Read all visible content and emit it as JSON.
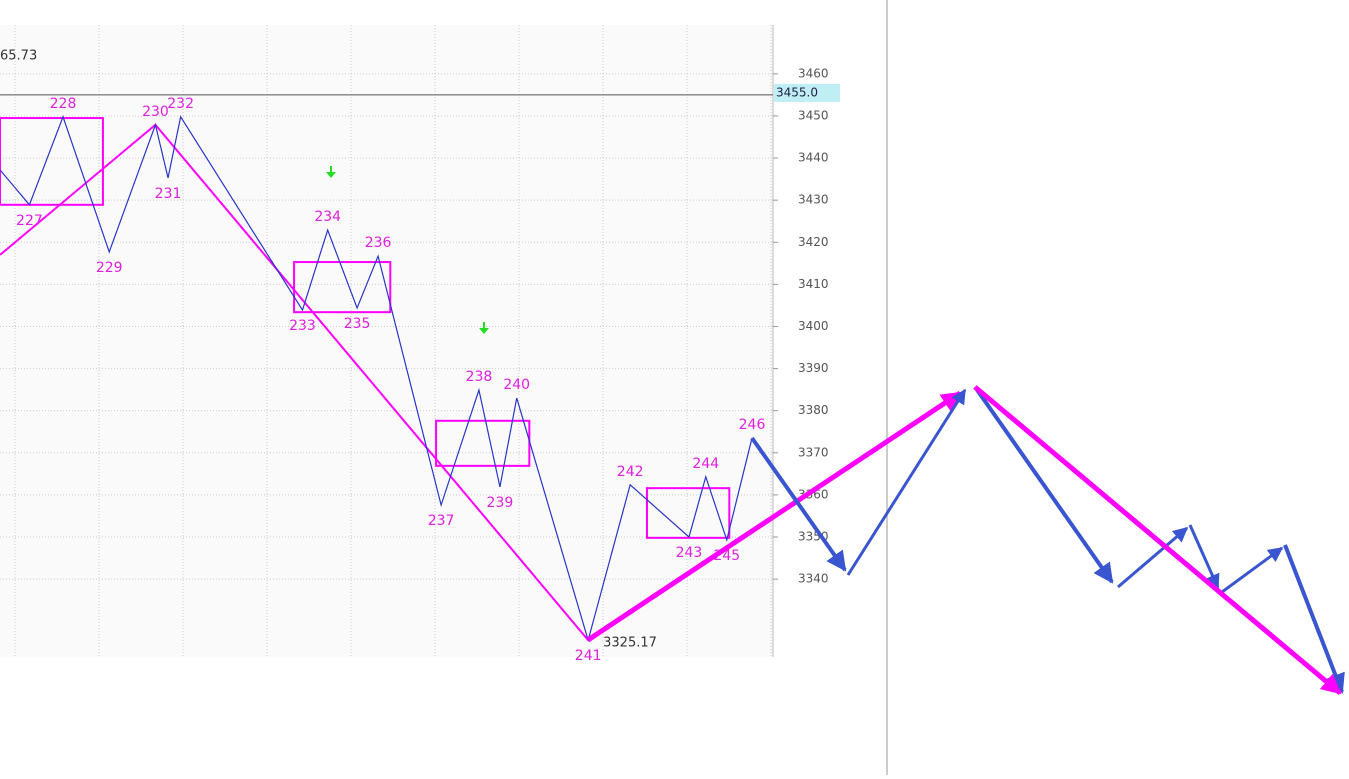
{
  "chart_data": {
    "type": "zigzag",
    "xlim": [
      0,
      184
    ],
    "ylim": [
      3321.5,
      3471.6
    ],
    "yticks": [
      3340,
      3350,
      3360,
      3370,
      3380,
      3390,
      3400,
      3410,
      3420,
      3430,
      3440,
      3450,
      3460
    ],
    "grid": true,
    "top_label": "65.73",
    "low_label": "3325.17",
    "reference": {
      "value": 3455,
      "label": "3455.0"
    },
    "waves": {
      "color": "#2a35c8",
      "x": [
        0,
        7,
        15,
        26,
        37,
        40,
        43,
        72,
        78,
        85,
        90,
        105,
        114,
        119,
        123,
        140,
        150,
        164,
        168,
        173,
        179
      ],
      "values": [
        3437.2,
        3428.9,
        3449.8,
        3417.7,
        3447.9,
        3435.3,
        3449.8,
        3403.9,
        3422.9,
        3404.4,
        3416.7,
        3357.6,
        3384.9,
        3361.9,
        3383.0,
        3325.5,
        3362.4,
        3350.0,
        3364.3,
        3349.3,
        3373.5
      ],
      "labels": [
        null,
        "227",
        "228",
        "229",
        "230",
        "231",
        "232",
        "233",
        "234",
        "235",
        "236",
        "237",
        "238",
        "239",
        "240",
        "241",
        "242",
        "243",
        "244",
        "245",
        "246"
      ]
    },
    "trend": {
      "color": "#ff00ff",
      "x": [
        0,
        37,
        140
      ],
      "values": [
        3417.0,
        3447.9,
        3325.5
      ]
    },
    "boxes": [
      {
        "x": [
          0,
          24.5
        ],
        "values": [
          3428.9,
          3449.5
        ]
      },
      {
        "x": [
          70,
          92.9
        ],
        "values": [
          3403.4,
          3415.3
        ]
      },
      {
        "x": [
          103.8,
          126
        ],
        "values": [
          3366.9,
          3377.6
        ]
      },
      {
        "x": [
          154,
          173.6
        ],
        "values": [
          3349.8,
          3361.6
        ]
      }
    ]
  }
}
